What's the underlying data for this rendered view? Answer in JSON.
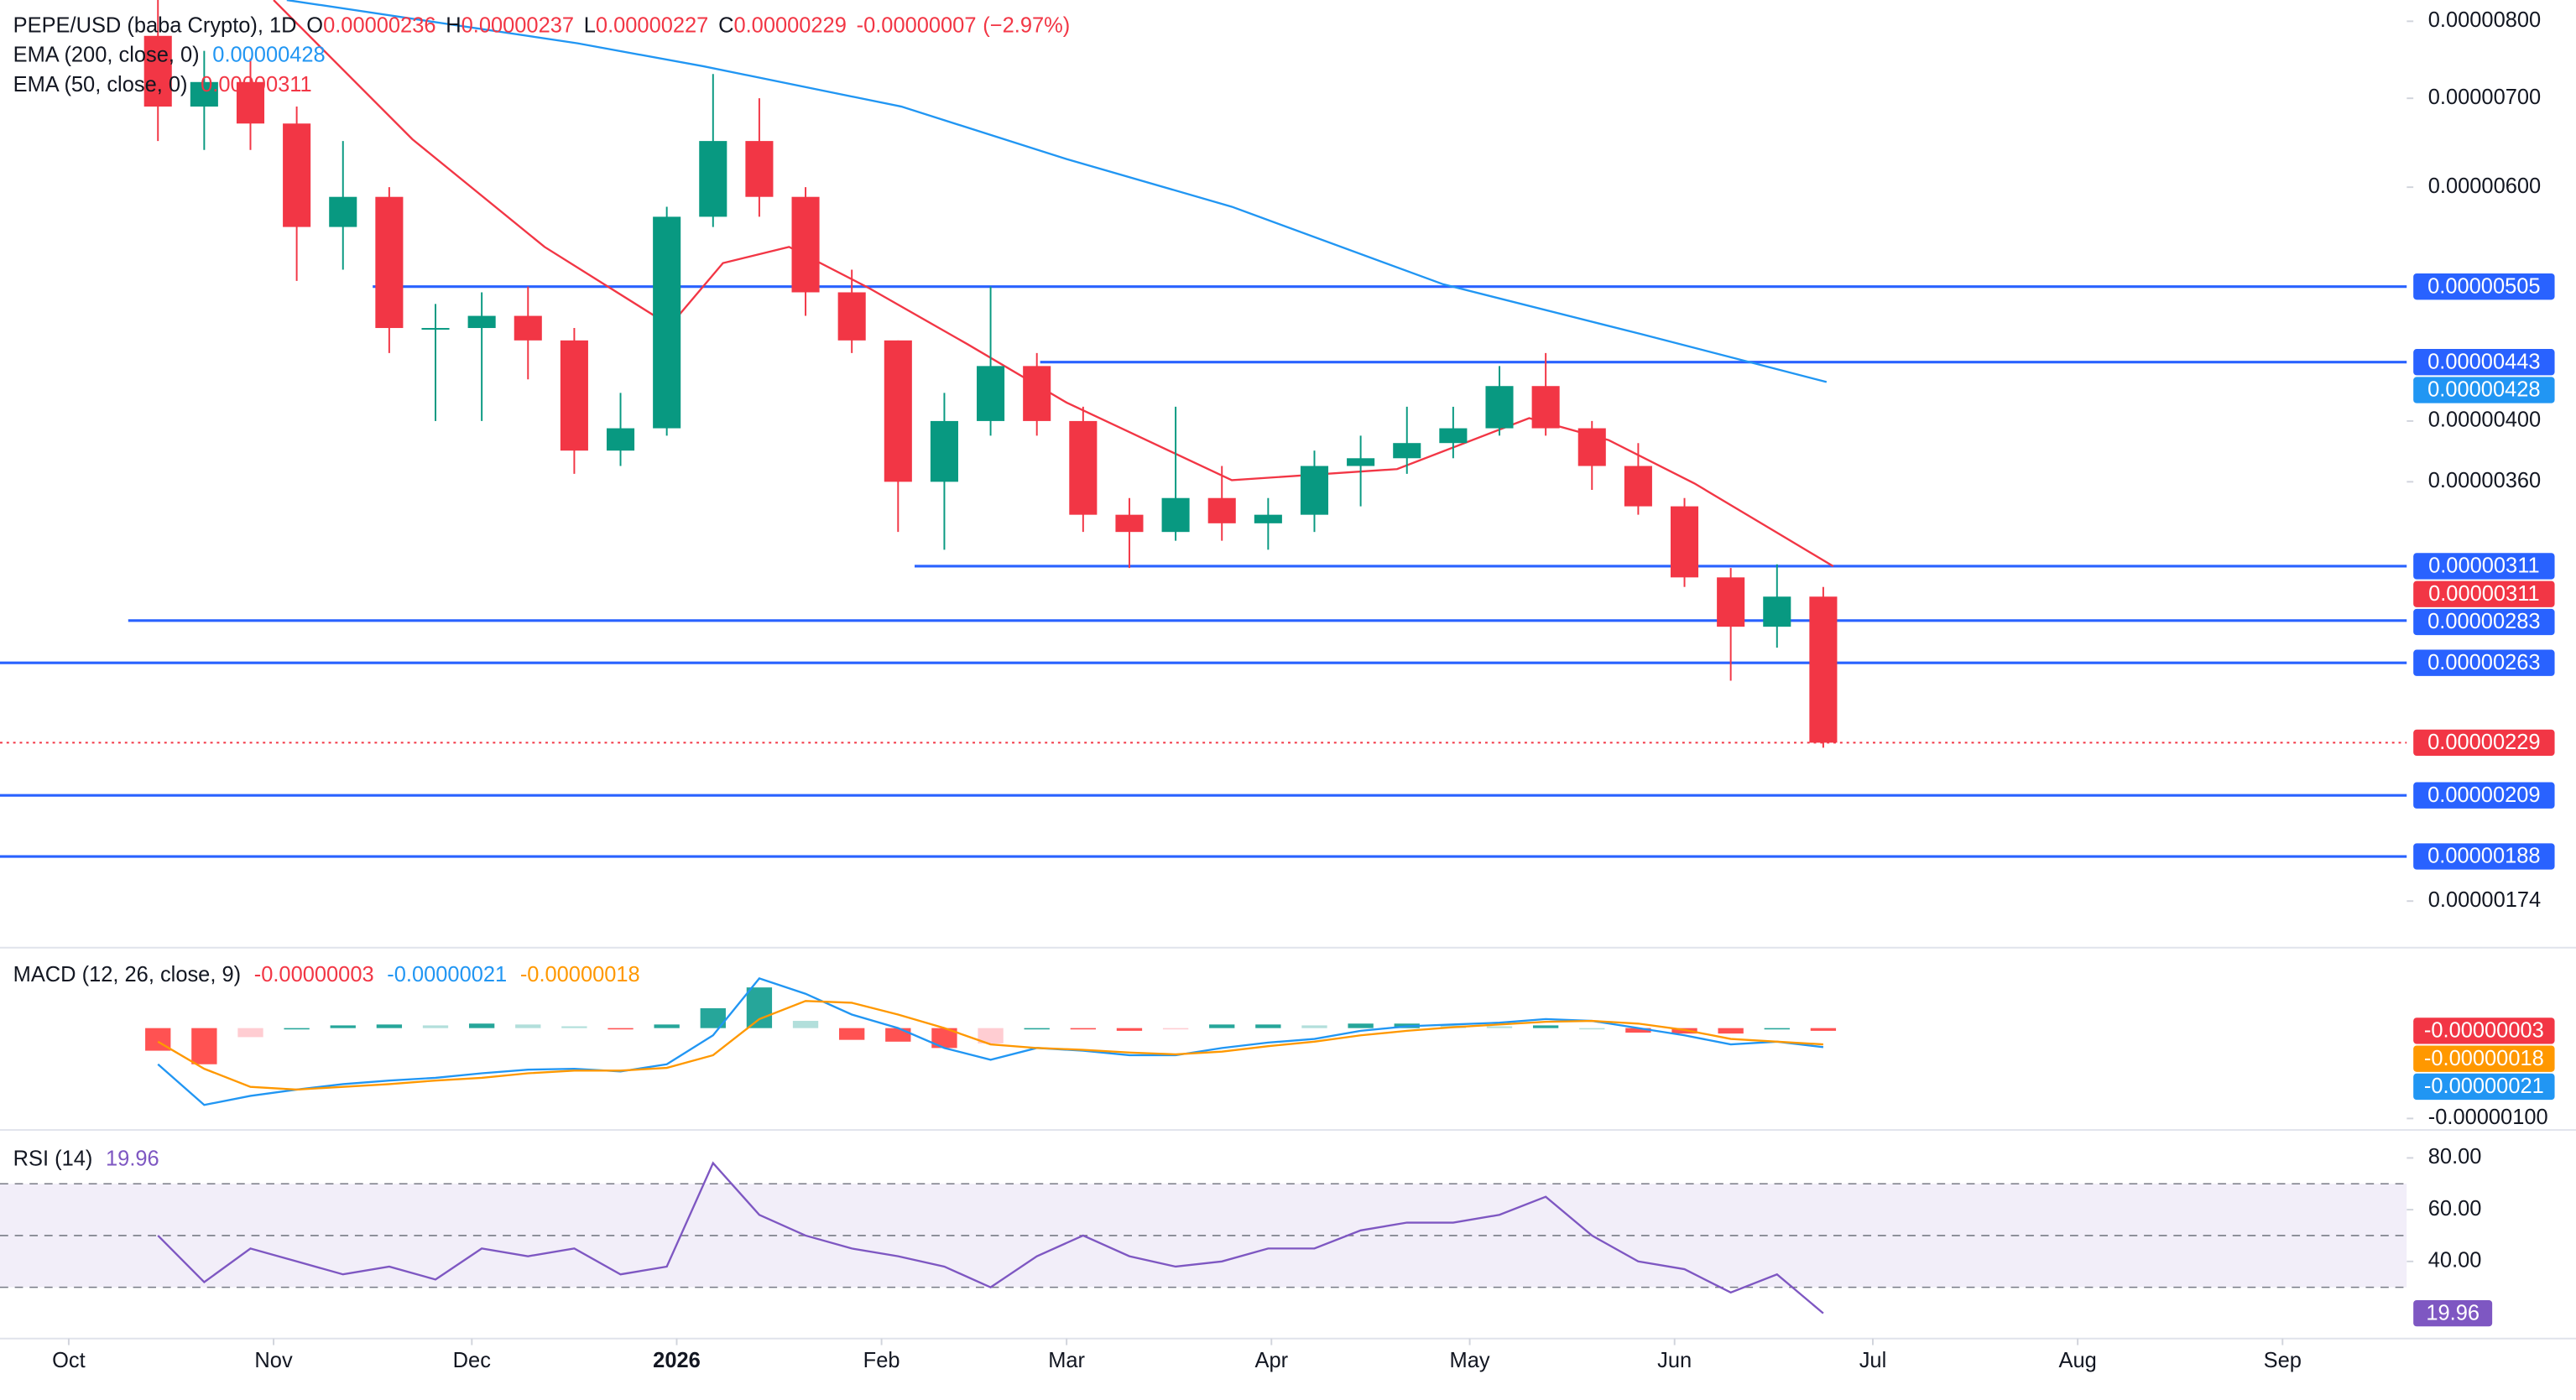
{
  "chart_data": {
    "type": "candlestick",
    "title": "PEPE/USD (baba Crypto), 1D",
    "ohlc_header": [
      {
        "name": "O",
        "value": 2.36e-06
      },
      {
        "name": "H",
        "value": 2.37e-06
      },
      {
        "name": "L",
        "value": 2.27e-06
      },
      {
        "name": "C",
        "value": 2.29e-06
      }
    ],
    "change": {
      "value": -7e-08,
      "label": "-0.00000007"
    },
    "change_pct": {
      "value": -2.97,
      "label": "(−2.97%)"
    },
    "xlim": [
      -10.4,
      353.8
    ],
    "xticks": [
      {
        "value": 0,
        "label": "Oct"
      },
      {
        "value": 31,
        "label": "Nov"
      },
      {
        "value": 61,
        "label": "Dec"
      },
      {
        "value": 92,
        "label": "2026",
        "bold": true
      },
      {
        "value": 123,
        "label": "Feb"
      },
      {
        "value": 151,
        "label": "Mar"
      },
      {
        "value": 182,
        "label": "Apr"
      },
      {
        "value": 212,
        "label": "May"
      },
      {
        "value": 243,
        "label": "Jun"
      },
      {
        "value": 273,
        "label": "Jul"
      },
      {
        "value": 304,
        "label": "Aug"
      },
      {
        "value": 335,
        "label": "Sep"
      }
    ],
    "ylim": [
      1.605e-06,
      8.3e-06
    ],
    "log_scale": true,
    "yticks": [
      {
        "value": 8e-06,
        "label": "0.00000800"
      },
      {
        "value": 7e-06,
        "label": "0.00000700"
      },
      {
        "value": 6e-06,
        "label": "0.00000600"
      },
      {
        "value": 4e-06,
        "label": "0.00000400"
      },
      {
        "value": 3.6e-06,
        "label": "0.00000360"
      },
      {
        "value": 1.74e-06,
        "label": "0.00000174"
      }
    ],
    "up_color": "#089981",
    "down_color": "#f23645",
    "x": [
      13.5,
      20.5,
      27.5,
      34.5,
      41.5,
      48.5,
      55.5,
      62.5,
      69.5,
      76.5,
      83.5,
      90.5,
      97.5,
      104.5,
      111.5,
      118.5,
      125.5,
      132.5,
      139.5,
      146.5,
      153.5,
      160.5,
      167.5,
      174.5,
      181.5,
      188.5,
      195.5,
      202.5,
      209.5,
      216.5,
      223.5,
      230.5,
      237.5,
      244.5,
      251.5,
      258.5,
      265.5
    ],
    "open": [
      7.8e-06,
      6.9e-06,
      7.2e-06,
      6.7e-06,
      5.6e-06,
      5.9e-06,
      4.7e-06,
      4.7e-06,
      4.8e-06,
      4.6e-06,
      3.8e-06,
      3.95e-06,
      5.7e-06,
      6.5e-06,
      5.9e-06,
      5e-06,
      4.6e-06,
      3.6e-06,
      4e-06,
      4.4e-06,
      4e-06,
      3.4e-06,
      3.3e-06,
      3.5e-06,
      3.35e-06,
      3.4e-06,
      3.7e-06,
      3.75e-06,
      3.85e-06,
      3.95e-06,
      4.25e-06,
      3.95e-06,
      3.7e-06,
      3.45e-06,
      3.05e-06,
      2.8e-06,
      2.95e-06
    ],
    "high": [
      8.3e-06,
      7.6e-06,
      7.5e-06,
      6.9e-06,
      6.5e-06,
      6e-06,
      4.9e-06,
      5e-06,
      5.05e-06,
      4.7e-06,
      4.2e-06,
      5.8e-06,
      7.3e-06,
      7e-06,
      6e-06,
      5.2e-06,
      4.6e-06,
      4.2e-06,
      5.05e-06,
      4.5e-06,
      4.1e-06,
      3.5e-06,
      4.1e-06,
      3.7e-06,
      3.5e-06,
      3.8e-06,
      3.9e-06,
      4.1e-06,
      4.1e-06,
      4.4e-06,
      4.5e-06,
      4e-06,
      3.85e-06,
      3.5e-06,
      3.1e-06,
      3.12e-06,
      3e-06
    ],
    "low": [
      6.5e-06,
      6.4e-06,
      6.4e-06,
      5.1e-06,
      5.2e-06,
      4.5e-06,
      4e-06,
      4e-06,
      4.3e-06,
      3.65e-06,
      3.7e-06,
      3.9e-06,
      5.6e-06,
      5.7e-06,
      4.8e-06,
      4.5e-06,
      3.3e-06,
      3.2e-06,
      3.9e-06,
      3.9e-06,
      3.3e-06,
      3.1e-06,
      3.25e-06,
      3.25e-06,
      3.2e-06,
      3.3e-06,
      3.45e-06,
      3.65e-06,
      3.75e-06,
      3.9e-06,
      3.9e-06,
      3.55e-06,
      3.4e-06,
      3e-06,
      2.55e-06,
      2.7e-06,
      2.27e-06
    ],
    "close": [
      6.9e-06,
      7.2e-06,
      6.7e-06,
      5.6e-06,
      5.9e-06,
      4.7e-06,
      4.7e-06,
      4.8e-06,
      4.6e-06,
      3.8e-06,
      3.95e-06,
      5.7e-06,
      6.5e-06,
      5.9e-06,
      5e-06,
      4.6e-06,
      3.6e-06,
      4e-06,
      4.4e-06,
      4e-06,
      3.4e-06,
      3.3e-06,
      3.5e-06,
      3.35e-06,
      3.4e-06,
      3.7e-06,
      3.75e-06,
      3.85e-06,
      3.95e-06,
      4.25e-06,
      3.95e-06,
      3.7e-06,
      3.45e-06,
      3.05e-06,
      2.8e-06,
      2.95e-06,
      2.29e-06
    ],
    "overlays": [
      {
        "name": "EMA (200, close, 0)",
        "color": "#2196f3",
        "last": 4.28e-06,
        "x": [
          33,
          77,
          96,
          126,
          151,
          176,
          208,
          238,
          266
        ],
        "values": [
          8.3e-06,
          7.7e-06,
          7.4e-06,
          6.9e-06,
          6.3e-06,
          5.8e-06,
          5.07e-06,
          4.65e-06,
          4.28e-06
        ]
      },
      {
        "name": "EMA (50, close, 0)",
        "color": "#f23645",
        "last": 3.11e-06,
        "x": [
          31,
          52,
          72,
          91,
          99,
          109,
          121,
          136,
          151,
          176,
          201,
          221,
          233,
          246,
          267
        ],
        "values": [
          8.3e-06,
          6.52e-06,
          5.41e-06,
          4.72e-06,
          5.26e-06,
          5.41e-06,
          5.04e-06,
          4.57e-06,
          4.13e-06,
          3.61e-06,
          3.68e-06,
          4.02e-06,
          3.87e-06,
          3.59e-06,
          3.11e-06
        ]
      }
    ],
    "levels": [
      {
        "value": 5.05e-06,
        "color": "#2962ff",
        "from": 46
      },
      {
        "value": 4.43e-06,
        "color": "#2962ff",
        "from": 147
      },
      {
        "value": 3.11e-06,
        "color": "#2962ff",
        "from": 128
      },
      {
        "value": 2.83e-06,
        "color": "#2962ff",
        "from": 9
      },
      {
        "value": 2.63e-06,
        "color": "#2962ff"
      },
      {
        "value": 2.09e-06,
        "color": "#2962ff"
      },
      {
        "value": 1.88e-06,
        "color": "#2962ff"
      }
    ],
    "last_price_color": "#f23645",
    "macd": {
      "name": "MACD (12, 26, close, 9)",
      "ylim": [
        -1.127e-06,
        8.9e-07
      ],
      "yticks": [
        {
          "value": -1e-06,
          "label": "-0.00000100"
        }
      ],
      "readout": [
        {
          "value": -3e-08,
          "label": "-0.00000003",
          "color": "#f23645"
        },
        {
          "value": -2.1e-07,
          "label": "-0.00000021",
          "color": "#2196f3"
        },
        {
          "value": -1.8e-07,
          "label": "-0.00000018",
          "color": "#ff9800"
        }
      ],
      "histogram": [
        -2.5e-07,
        -4e-07,
        -1e-07,
        0,
        3e-08,
        4e-08,
        3e-08,
        5e-08,
        4e-08,
        2e-08,
        -1e-08,
        4e-08,
        2.2e-07,
        4.5e-07,
        8e-08,
        -1.3e-07,
        -1.5e-07,
        -2.2e-07,
        -1.7e-07,
        0,
        -1e-08,
        -3e-08,
        -1e-08,
        4e-08,
        4e-08,
        3e-08,
        5e-08,
        5e-08,
        3e-08,
        2e-08,
        3e-08,
        0,
        -5e-08,
        -6e-08,
        -6e-08,
        0,
        -3e-08
      ],
      "macd_line": {
        "color": "#2196f3",
        "values": [
          -4e-07,
          -8.5e-07,
          -7.5e-07,
          -6.8e-07,
          -6.2e-07,
          -5.8e-07,
          -5.5e-07,
          -5e-07,
          -4.6e-07,
          -4.5e-07,
          -4.8e-07,
          -4e-07,
          -8e-08,
          5.5e-07,
          3.8e-07,
          1.5e-07,
          0,
          -2.2e-07,
          -3.5e-07,
          -2.2e-07,
          -2.5e-07,
          -3e-07,
          -3e-07,
          -2.2e-07,
          -1.6e-07,
          -1.2e-07,
          -3e-08,
          2e-08,
          4e-08,
          6e-08,
          1e-07,
          8e-08,
          0,
          -8e-08,
          -1.8e-07,
          -1.5e-07,
          -2.1e-07
        ]
      },
      "signal_line": {
        "color": "#ff9800",
        "values": [
          -1.5e-07,
          -4.5e-07,
          -6.5e-07,
          -6.8e-07,
          -6.5e-07,
          -6.2e-07,
          -5.8e-07,
          -5.5e-07,
          -5e-07,
          -4.7e-07,
          -4.7e-07,
          -4.4e-07,
          -3e-07,
          1e-07,
          3e-07,
          2.8e-07,
          1.5e-07,
          0,
          -1.8e-07,
          -2.2e-07,
          -2.4e-07,
          -2.7e-07,
          -2.9e-07,
          -2.6e-07,
          -2e-07,
          -1.5e-07,
          -8e-08,
          -3e-08,
          1e-08,
          4e-08,
          7e-08,
          8e-08,
          5e-08,
          -2e-08,
          -1.2e-07,
          -1.5e-07,
          -1.8e-07
        ]
      }
    },
    "rsi": {
      "name": "RSI (14)",
      "color": "#7e57c2",
      "readout": 19.96,
      "ylim": [
        10.2,
        90.8
      ],
      "yticks": [
        {
          "value": 80,
          "label": "80.00"
        },
        {
          "value": 60,
          "label": "60.00"
        },
        {
          "value": 40,
          "label": "40.00"
        }
      ],
      "band": [
        30,
        70
      ],
      "guides": [
        70,
        50,
        30
      ],
      "values": [
        50,
        32,
        45,
        40,
        35,
        38,
        33,
        45,
        42,
        45,
        35,
        38,
        78,
        58,
        50,
        45,
        42,
        38,
        30,
        42,
        50,
        42,
        38,
        40,
        45,
        45,
        52,
        55,
        55,
        58,
        65,
        50,
        40,
        37,
        28,
        35,
        19.96
      ]
    }
  }
}
